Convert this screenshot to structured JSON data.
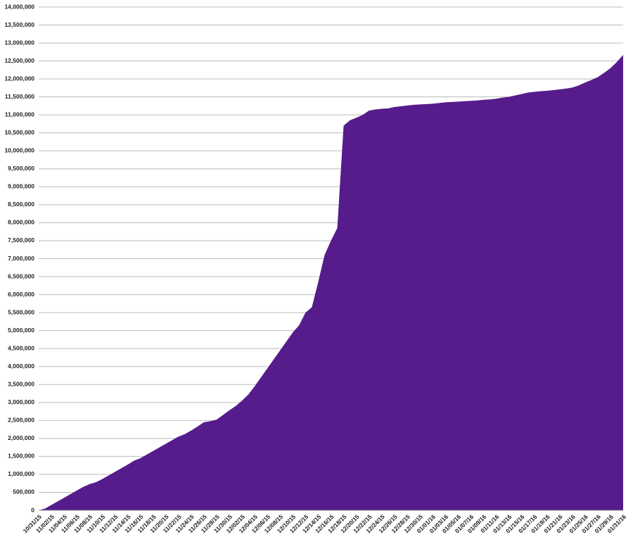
{
  "chart_data": {
    "type": "area",
    "color": "#561c8b",
    "grid": true,
    "categories": [
      "10/31/15",
      null,
      "11/02/15",
      null,
      "11/04/15",
      null,
      "11/06/15",
      null,
      "11/08/15",
      null,
      "11/10/15",
      null,
      "11/12/15",
      null,
      "11/14/15",
      null,
      "11/16/15",
      null,
      "11/18/15",
      null,
      "11/20/15",
      null,
      "11/22/15",
      null,
      "11/24/15",
      null,
      "11/26/15",
      null,
      "11/28/15",
      null,
      "11/30/15",
      null,
      "12/02/15",
      null,
      "12/04/15",
      null,
      "12/06/15",
      null,
      "12/08/15",
      null,
      "12/10/15",
      null,
      "12/12/15",
      null,
      "12/14/15",
      null,
      "12/16/15",
      null,
      "12/18/15",
      null,
      "12/20/15",
      null,
      "12/22/15",
      null,
      "12/24/15",
      null,
      "12/26/15",
      null,
      "12/28/15",
      null,
      "12/30/15",
      null,
      "01/01/16",
      null,
      "01/03/16",
      null,
      "01/05/16",
      null,
      "01/07/16",
      null,
      "01/09/16",
      null,
      "01/11/16",
      null,
      "01/13/16",
      null,
      "01/15/16",
      null,
      "01/17/16",
      null,
      "01/19/16",
      null,
      "01/21/16",
      null,
      "01/23/16",
      null,
      "01/25/16",
      null,
      "01/27/16",
      null,
      "01/29/16",
      null,
      "01/31/16"
    ],
    "values": [
      0,
      50000,
      150000,
      250000,
      350000,
      450000,
      550000,
      650000,
      730000,
      780000,
      870000,
      970000,
      1070000,
      1170000,
      1270000,
      1380000,
      1450000,
      1550000,
      1650000,
      1750000,
      1850000,
      1950000,
      2050000,
      2120000,
      2220000,
      2330000,
      2450000,
      2480000,
      2520000,
      2650000,
      2780000,
      2900000,
      3050000,
      3220000,
      3450000,
      3700000,
      3950000,
      4200000,
      4450000,
      4700000,
      4950000,
      5150000,
      5500000,
      5650000,
      6350000,
      7100000,
      7500000,
      7850000,
      10700000,
      10850000,
      10920000,
      11000000,
      11120000,
      11150000,
      11170000,
      11180000,
      11220000,
      11240000,
      11260000,
      11280000,
      11290000,
      11300000,
      11310000,
      11330000,
      11350000,
      11360000,
      11370000,
      11380000,
      11390000,
      11400000,
      11420000,
      11430000,
      11450000,
      11480000,
      11500000,
      11540000,
      11580000,
      11620000,
      11640000,
      11660000,
      11670000,
      11690000,
      11710000,
      11730000,
      11760000,
      11820000,
      11900000,
      11970000,
      12050000,
      12170000,
      12300000,
      12470000,
      12670000
    ],
    "ylim": [
      0,
      14000000
    ],
    "yticks": [
      0,
      {
        "value": 500000,
        "label": "500,000"
      },
      {
        "value": 1000000,
        "label": "1,000,000"
      },
      {
        "value": 1500000,
        "label": "1,500,000"
      },
      {
        "value": 2000000,
        "label": "2,000,000"
      },
      {
        "value": 2500000,
        "label": "2,500,000"
      },
      {
        "value": 3000000,
        "label": "3,000,000"
      },
      {
        "value": 3500000,
        "label": "3,500,000"
      },
      {
        "value": 4000000,
        "label": "4,000,000"
      },
      {
        "value": 4500000,
        "label": "4,500,000"
      },
      {
        "value": 5000000,
        "label": "5,000,000"
      },
      {
        "value": 5500000,
        "label": "5,500,000"
      },
      {
        "value": 6000000,
        "label": "6,000,000"
      },
      {
        "value": 6500000,
        "label": "6,500,000"
      },
      {
        "value": 7000000,
        "label": "7,000,000"
      },
      {
        "value": 7500000,
        "label": "7,500,000"
      },
      {
        "value": 8000000,
        "label": "8,000,000"
      },
      {
        "value": 8500000,
        "label": "8,500,000"
      },
      {
        "value": 9000000,
        "label": "9,000,000"
      },
      {
        "value": 9500000,
        "label": "9,500,000"
      },
      {
        "value": 10000000,
        "label": "10,000,000"
      },
      {
        "value": 10500000,
        "label": "10,500,000"
      },
      {
        "value": 11000000,
        "label": "11,000,000"
      },
      {
        "value": 11500000,
        "label": "11,500,000"
      },
      {
        "value": 12000000,
        "label": "12,000,000"
      },
      {
        "value": 12500000,
        "label": "12,500,000"
      },
      {
        "value": 13000000,
        "label": "13,000,000"
      },
      {
        "value": 13500000,
        "label": "13,500,000"
      },
      {
        "value": 14000000,
        "label": "14,000,000"
      }
    ]
  }
}
